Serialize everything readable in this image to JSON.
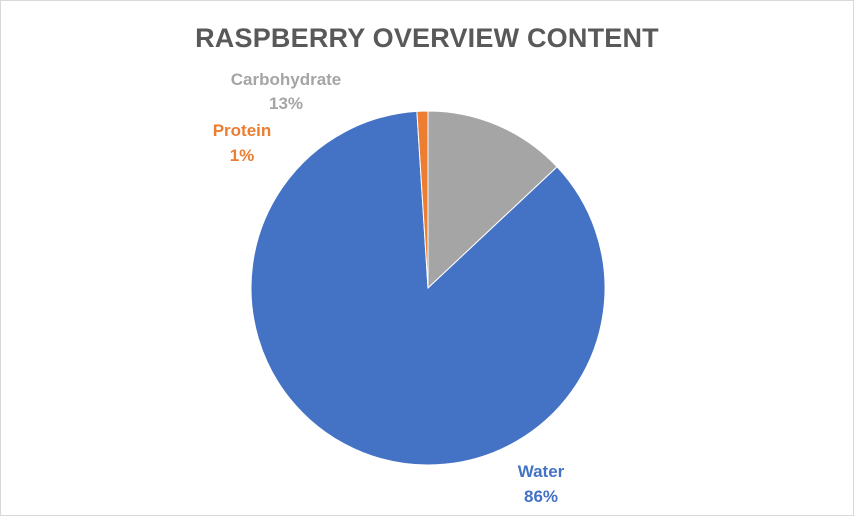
{
  "chart_data": {
    "type": "pie",
    "title": "RASPBERRY OVERVIEW CONTENT",
    "slices": [
      {
        "label": "Carbohydrate",
        "value": 13,
        "display": "13%",
        "color": "#a5a5a5"
      },
      {
        "label": "Water",
        "value": 86,
        "display": "86%",
        "color": "#4472c4"
      },
      {
        "label": "Protein",
        "value": 1,
        "display": "1%",
        "color": "#ed7d31"
      }
    ],
    "legend": "none",
    "data_labels": "outside"
  }
}
